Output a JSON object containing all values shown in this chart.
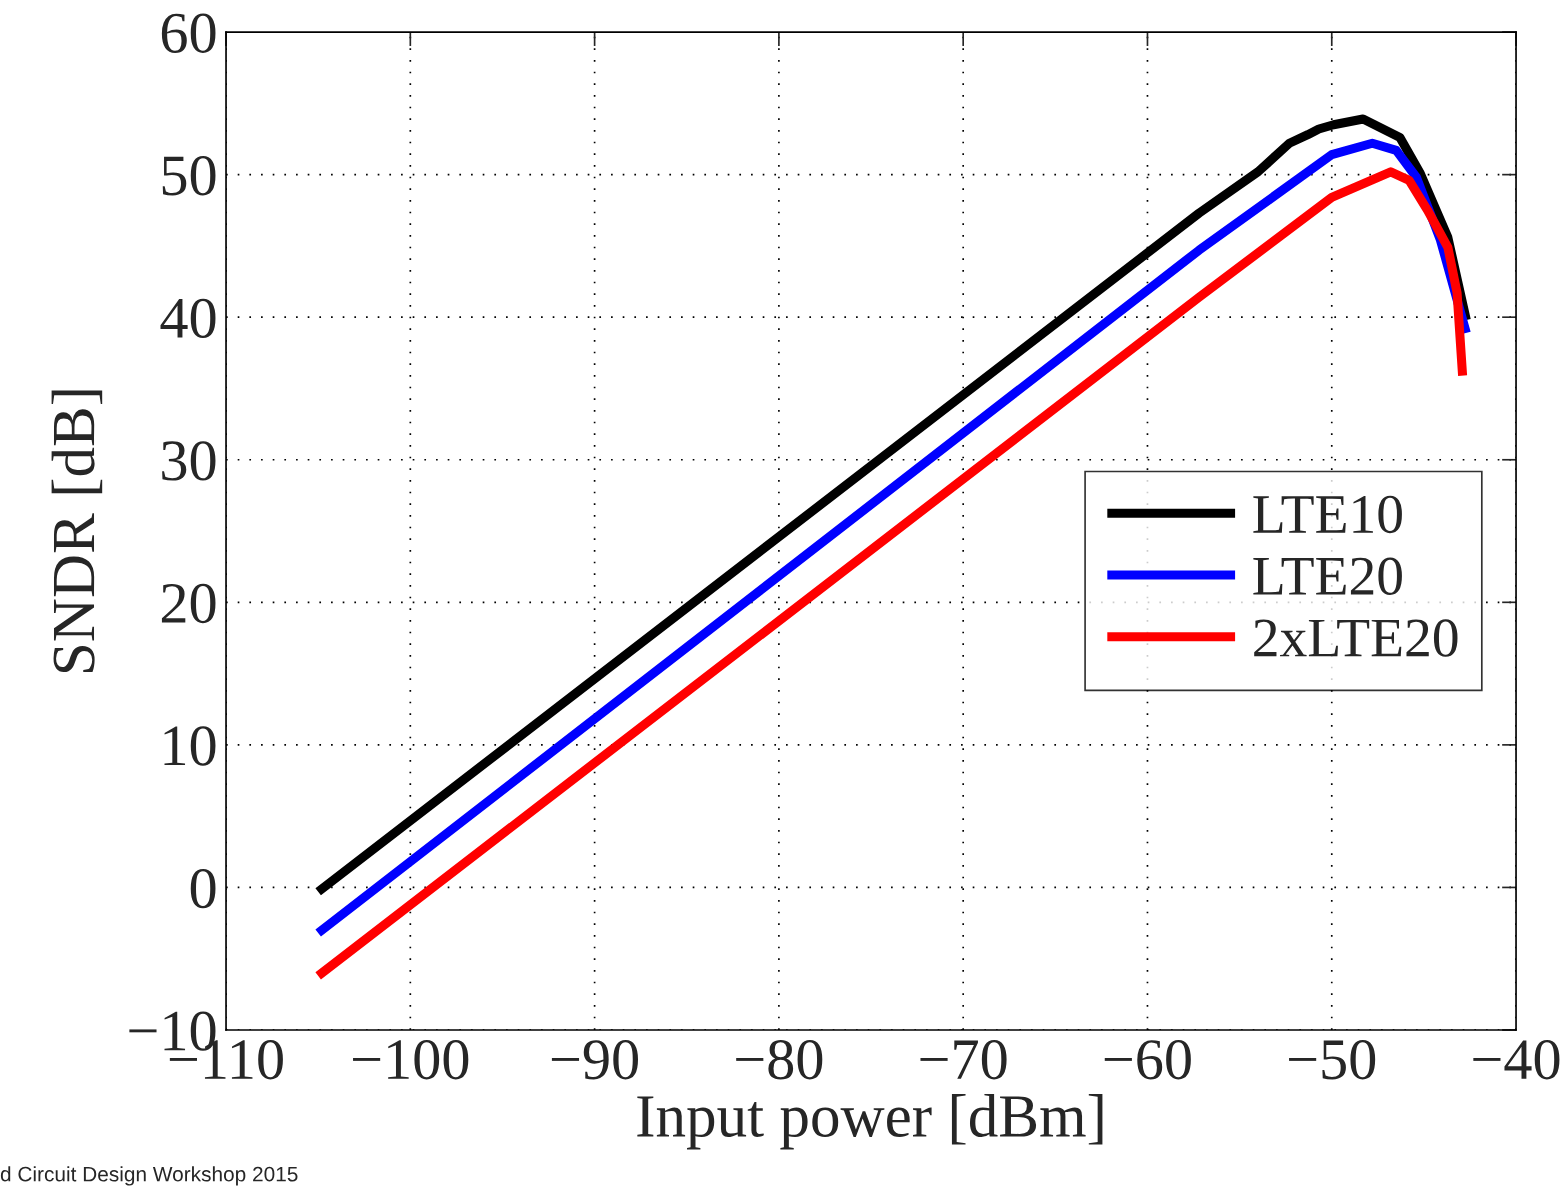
{
  "chart_data": {
    "type": "line",
    "xlabel": "Input power [dBm]",
    "ylabel": "SNDR [dB]",
    "xlim": [
      -110,
      -40
    ],
    "ylim": [
      -10,
      60
    ],
    "xticks": [
      {
        "value": -110,
        "label": "−110"
      },
      {
        "value": -100,
        "label": "−100"
      },
      {
        "value": -90,
        "label": "−90"
      },
      {
        "value": -80,
        "label": "−80"
      },
      {
        "value": -70,
        "label": "−70"
      },
      {
        "value": -60,
        "label": "−60"
      },
      {
        "value": -50,
        "label": "−50"
      },
      {
        "value": -40,
        "label": "−40"
      }
    ],
    "yticks": [
      {
        "value": -10,
        "label": "−10"
      },
      0,
      10,
      20,
      30,
      40,
      50,
      60
    ],
    "grid": true,
    "legend": "right",
    "line_style": "solid",
    "marker": "none",
    "annotations": [
      "d Circuit Design Workshop 2015"
    ],
    "series": [
      {
        "name": "LTE10",
        "color": "#000000",
        "x": [
          -105,
          -57.2,
          -54,
          -52.3,
          -51.3,
          -50.7,
          -49.9,
          -48.3,
          -46.3,
          -45.2,
          -43.7,
          -42.7
        ],
        "values": [
          -0.3,
          47.3,
          50.2,
          52.2,
          52.8,
          53.2,
          53.5,
          53.9,
          52.6,
          50.1,
          45.6,
          39.8
        ]
      },
      {
        "name": "LTE20",
        "color": "#0000ff",
        "x": [
          -105,
          -57.2,
          -50,
          -47.8,
          -46.5,
          -45.4,
          -44.1,
          -42.7
        ],
        "values": [
          -3.2,
          44.7,
          51.4,
          52.2,
          51.7,
          49.8,
          45.4,
          38.9
        ]
      },
      {
        "name": "2xLTE20",
        "color": "#ff0000",
        "x": [
          -105,
          -57.2,
          -50,
          -46.8,
          -45.8,
          -44.8,
          -43.7,
          -43.2,
          -42.9
        ],
        "values": [
          -6.2,
          41.4,
          48.4,
          50.2,
          49.6,
          47.5,
          44.9,
          41.7,
          35.9
        ]
      }
    ]
  }
}
